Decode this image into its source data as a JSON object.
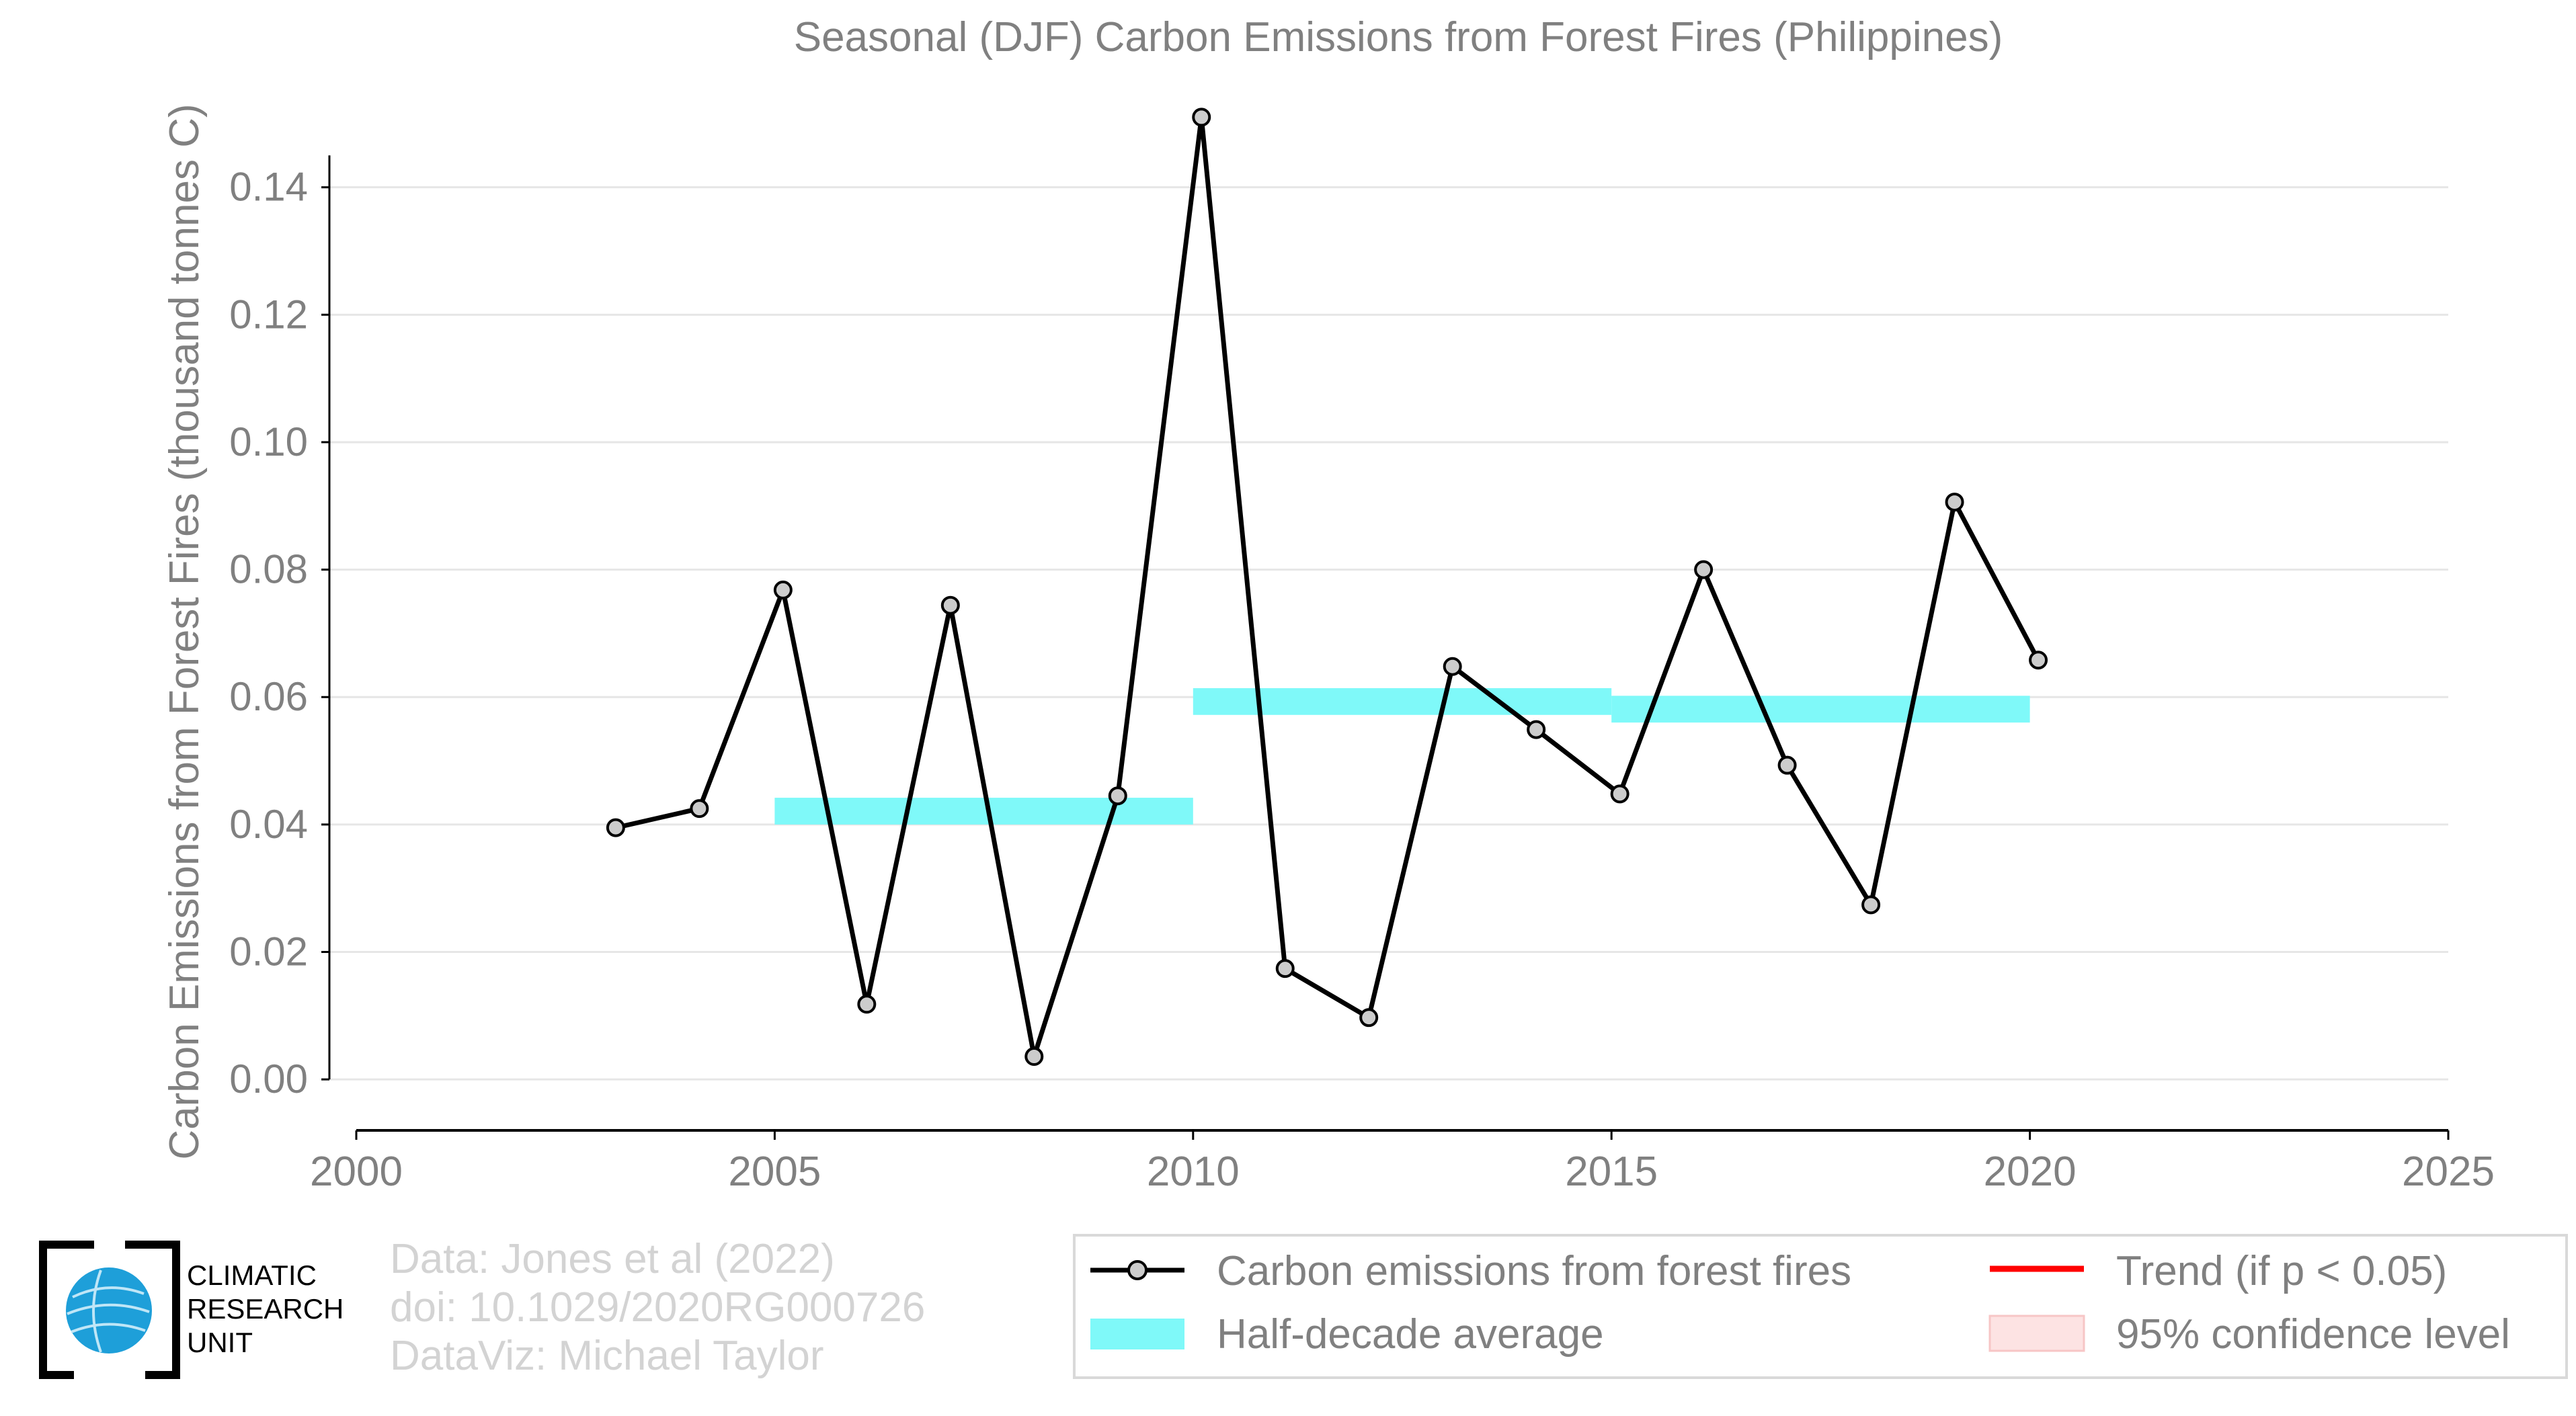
{
  "chart_data": {
    "type": "line",
    "title": "Seasonal (DJF) Carbon Emissions from Forest Fires (Philippines)",
    "ylabel": "Carbon Emissions from Forest Fires (thousand tonnes C)",
    "xlabel": "",
    "xlim": [
      2000,
      2025
    ],
    "ylim": [
      -0.008,
      0.158
    ],
    "x_ticks": [
      2000,
      2005,
      2010,
      2015,
      2020,
      2025
    ],
    "y_ticks": [
      0.0,
      0.02,
      0.04,
      0.06,
      0.08,
      0.1,
      0.12,
      0.14
    ],
    "y_tick_labels": [
      "0.00",
      "0.02",
      "0.04",
      "0.06",
      "0.08",
      "0.10",
      "0.12",
      "0.14"
    ],
    "grid": "horizontal",
    "series": [
      {
        "name": "Carbon emissions from forest fires",
        "color": "#000000",
        "marker_color": "#cccccc",
        "x": [
          2003.1,
          2004.1,
          2005.1,
          2006.1,
          2007.1,
          2008.1,
          2009.1,
          2010.1,
          2011.1,
          2012.1,
          2013.1,
          2014.1,
          2015.1,
          2016.1,
          2017.1,
          2018.1,
          2019.1,
          2020.1
        ],
        "y": [
          0.0395,
          0.0425,
          0.0768,
          0.0118,
          0.0744,
          0.0036,
          0.0445,
          0.151,
          0.0174,
          0.0097,
          0.0648,
          0.0549,
          0.0448,
          0.08,
          0.0493,
          0.0274,
          0.0906,
          0.0658
        ]
      }
    ],
    "half_decade_average": {
      "name": "Half-decade average",
      "color": "#7ff9f9",
      "segments": [
        {
          "x0": 2005,
          "x1": 2010,
          "y0": 0.04,
          "y1": 0.0442
        },
        {
          "x0": 2010,
          "x1": 2015,
          "y0": 0.0572,
          "y1": 0.0614
        },
        {
          "x0": 2015,
          "x1": 2020,
          "y0": 0.056,
          "y1": 0.0602
        }
      ]
    },
    "legend": {
      "placement": "bottom-right",
      "entries": [
        {
          "label": "Carbon emissions from forest fires",
          "kind": "line-marker",
          "color": "#000000"
        },
        {
          "label": "Trend (if p < 0.05)",
          "kind": "line",
          "color": "#ff0000"
        },
        {
          "label": "Half-decade average",
          "kind": "patch",
          "color": "#7ff9f9"
        },
        {
          "label": "95% confidence level",
          "kind": "patch",
          "color": "#fde3e3"
        }
      ]
    }
  },
  "logo": {
    "text": [
      "CLIMATIC",
      "RESEARCH",
      "UNIT"
    ],
    "globe_color": "#1e9fd9"
  },
  "credits": {
    "line1": "Data: Jones et al (2022)",
    "line2": "doi: 10.1029/2020RG000726",
    "line3": "DataViz: Michael Taylor"
  }
}
